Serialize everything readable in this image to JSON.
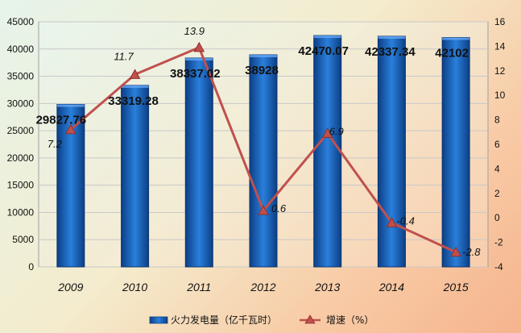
{
  "chart_data": {
    "type": "bar",
    "categories": [
      "2009",
      "2010",
      "2011",
      "2012",
      "2013",
      "2014",
      "2015"
    ],
    "series": [
      {
        "name": "火力发电量（亿千瓦时）",
        "type": "bar",
        "axis": "left",
        "values": [
          29827.76,
          33319.28,
          38337.02,
          38928,
          42470.07,
          42337.34,
          42102
        ],
        "labels": [
          "29827.76",
          "33319.28",
          "38337.02",
          "38928",
          "42470.07",
          "42337.34",
          "42102"
        ],
        "color": "#1f6fc5"
      },
      {
        "name": "增速（%）",
        "type": "line",
        "axis": "right",
        "values": [
          7.2,
          11.7,
          13.9,
          0.6,
          6.9,
          -0.4,
          -2.8
        ],
        "labels": [
          "7.2",
          "11.7",
          "13.9",
          "0.6",
          "6.9",
          "-0.4",
          "-2.8"
        ],
        "color": "#c0504d"
      }
    ],
    "y_left": {
      "min": 0,
      "max": 45000,
      "step": 5000
    },
    "y_right": {
      "min": -4,
      "max": 16,
      "step": 2
    },
    "legend_position": "bottom-center",
    "grid": true
  },
  "legend": {
    "bar_label": "火力发电量（亿千瓦时）",
    "line_label": "增速（%）"
  },
  "colors": {
    "bar": "#1f6fc5",
    "bar_dark": "#0c3f86",
    "line": "#c0504d"
  }
}
